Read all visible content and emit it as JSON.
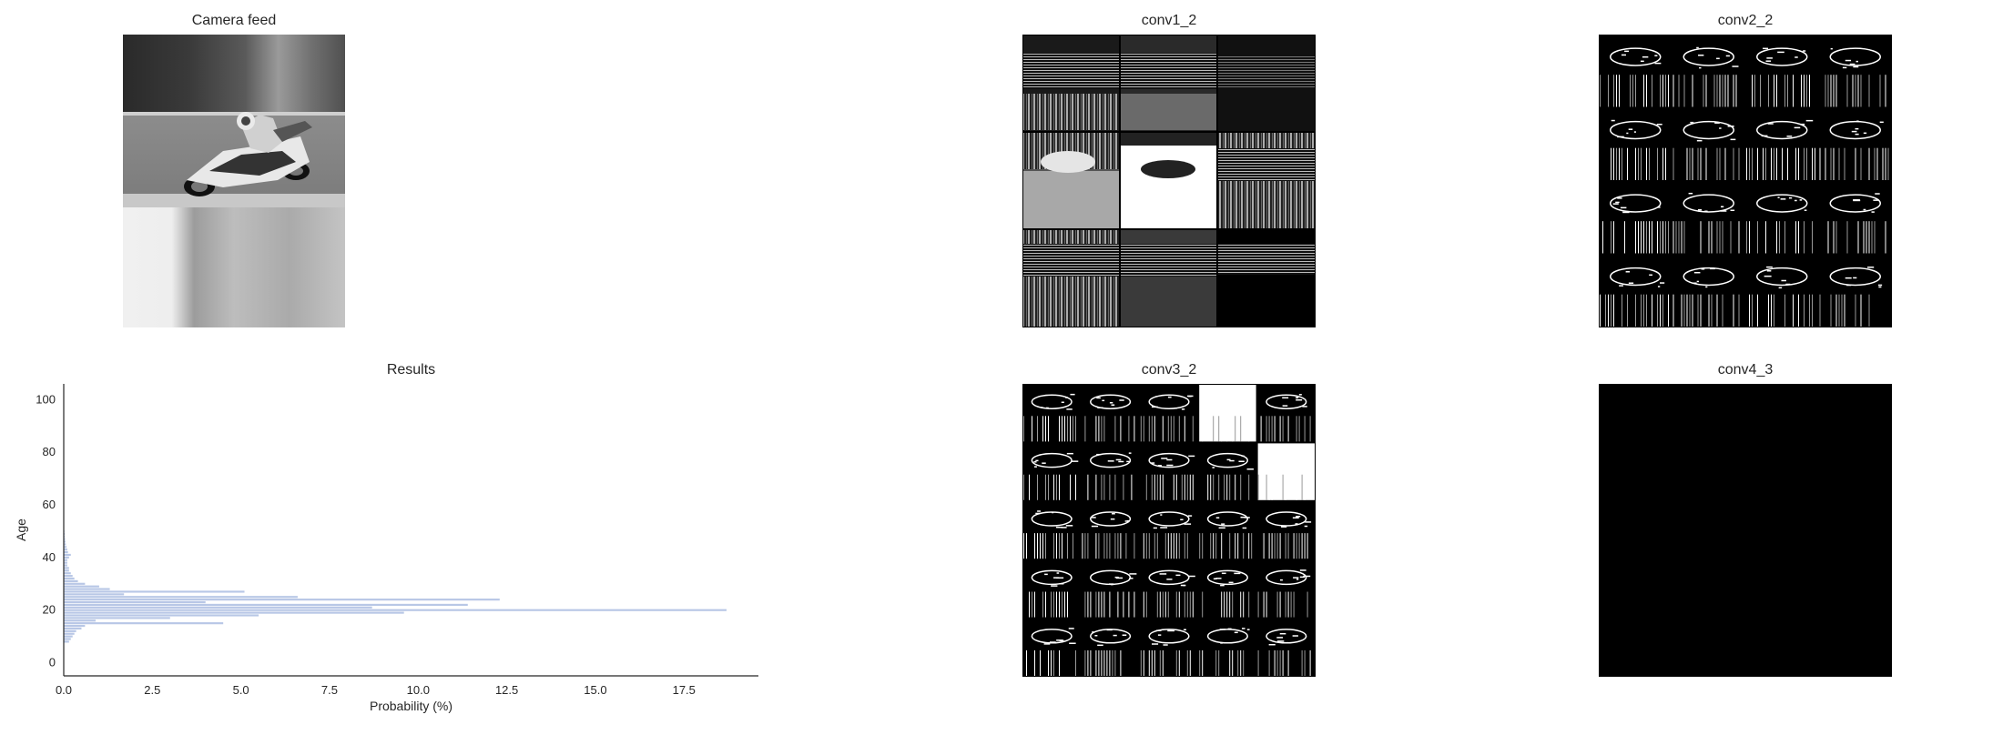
{
  "panels": {
    "camera_title": "Camera feed",
    "conv1_title": "conv1_2",
    "conv2_title": "conv2_2",
    "conv3_title": "conv3_2",
    "conv4_title": "conv4_3"
  },
  "feature_grids": {
    "conv1_2": {
      "rows": 3,
      "cols": 3
    },
    "conv2_2": {
      "rows": 4,
      "cols": 4
    },
    "conv3_2": {
      "rows": 5,
      "cols": 5
    },
    "conv4_3": {
      "rows": 1,
      "cols": 1,
      "blank": true
    }
  },
  "chart_data": {
    "type": "bar",
    "orientation": "horizontal",
    "title": "Results",
    "xlabel": "Probability (%)",
    "ylabel": "Age",
    "xlim": [
      0,
      19.6
    ],
    "ylim": [
      -5,
      106
    ],
    "xticks": [
      0,
      2.5,
      5,
      7.5,
      10,
      12.5,
      15,
      17.5
    ],
    "xtick_labels": [
      "0.0",
      "2.5",
      "5.0",
      "7.5",
      "10.0",
      "12.5",
      "15.0",
      "17.5"
    ],
    "yticks": [
      0,
      20,
      40,
      60,
      80,
      100
    ],
    "ytick_labels": [
      "0",
      "20",
      "40",
      "60",
      "80",
      "100"
    ],
    "grid": false,
    "bar_color": "#b8c7e6",
    "categories": [
      8,
      9,
      10,
      11,
      12,
      13,
      14,
      15,
      16,
      17,
      18,
      19,
      20,
      21,
      22,
      23,
      24,
      25,
      26,
      27,
      28,
      29,
      30,
      31,
      32,
      33,
      34,
      35,
      36,
      37,
      38,
      39,
      40,
      41,
      42,
      43,
      44,
      45,
      46,
      47,
      48,
      49,
      50
    ],
    "values": [
      0.15,
      0.2,
      0.25,
      0.3,
      0.35,
      0.5,
      0.6,
      4.5,
      0.9,
      3.0,
      5.5,
      9.6,
      18.7,
      8.7,
      11.4,
      4.0,
      12.3,
      6.6,
      1.7,
      5.1,
      1.3,
      1.0,
      0.6,
      0.4,
      0.3,
      0.25,
      0.2,
      0.15,
      0.15,
      0.1,
      0.1,
      0.1,
      0.15,
      0.2,
      0.12,
      0.1,
      0.08,
      0.06,
      0.05,
      0.04,
      0.03,
      0.03,
      0.02
    ]
  }
}
